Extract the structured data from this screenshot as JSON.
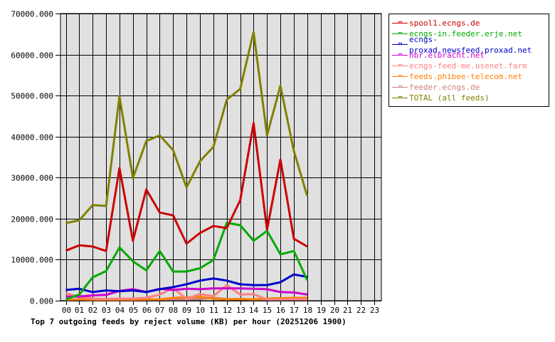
{
  "caption": "Top 7 outgoing feeds by reject volume (KB) per hour (20251206 1900)",
  "chart_data": {
    "type": "line",
    "title": "Top 7 outgoing feeds by reject volume (KB) per hour (20251206 1900)",
    "xlabel": "",
    "ylabel": "",
    "ylim": [
      0,
      70000
    ],
    "y_ticks": [
      "0.000",
      "10000.000",
      "20000.000",
      "30000.000",
      "40000.000",
      "50000.000",
      "60000.000",
      "70000.000"
    ],
    "categories": [
      "00",
      "01",
      "02",
      "03",
      "04",
      "05",
      "06",
      "07",
      "08",
      "09",
      "10",
      "11",
      "12",
      "13",
      "14",
      "15",
      "16",
      "17",
      "18",
      "19",
      "20",
      "21",
      "22",
      "23"
    ],
    "grid": true,
    "legend_position": "right",
    "series": [
      {
        "name": "spool1.ecngs.de",
        "color": "#cc0000",
        "values": [
          12200,
          13500,
          13200,
          12100,
          32300,
          14600,
          27100,
          21500,
          20800,
          13900,
          16500,
          18200,
          17700,
          24500,
          43300,
          17300,
          34400,
          15100,
          13200
        ]
      },
      {
        "name": "ecngs-in.feeder.erje.net",
        "color": "#00aa00",
        "values": [
          300,
          1500,
          5700,
          7200,
          13000,
          9600,
          7400,
          12100,
          7100,
          7100,
          7900,
          9900,
          19000,
          18400,
          14600,
          17000,
          11300,
          12100,
          5000
        ]
      },
      {
        "name": "ecngs-proxad.newsfeed.proxad.net",
        "color": "#0000cc",
        "values": [
          2600,
          2900,
          2100,
          2500,
          2300,
          2500,
          2100,
          2800,
          3300,
          4000,
          4900,
          5400,
          4900,
          4000,
          3800,
          3800,
          4500,
          6400,
          5800
        ]
      },
      {
        "name": "nbr.elbracht.net",
        "color": "#cc00cc",
        "values": [
          1000,
          1000,
          1300,
          1400,
          2400,
          2800,
          2100,
          2900,
          2600,
          2900,
          2800,
          3000,
          3000,
          3000,
          2900,
          2800,
          2100,
          2000,
          1500
        ]
      },
      {
        "name": "ecngs-feed-me.usenet.farm",
        "color": "#ff8080",
        "values": [
          1800,
          900,
          500,
          400,
          500,
          500,
          700,
          1500,
          3100,
          400,
          1600,
          1100,
          3800,
          1500,
          1600,
          300,
          300,
          400,
          300
        ]
      },
      {
        "name": "feeds.phibee-telecom.net",
        "color": "#ff7f00",
        "values": [
          200,
          300,
          200,
          200,
          200,
          200,
          300,
          300,
          700,
          800,
          900,
          500,
          300,
          400,
          300,
          500,
          600,
          700,
          700
        ]
      },
      {
        "name": "feeder.ecngs.de",
        "color": "#cc8080",
        "values": [
          800,
          1300,
          500,
          300,
          300,
          300,
          300,
          300,
          300,
          300,
          400,
          700,
          400,
          400,
          300,
          300,
          300,
          300,
          300
        ]
      },
      {
        "name": "TOTAL (all feeds)",
        "color": "#808000",
        "values": [
          18900,
          19600,
          23300,
          23100,
          49800,
          29900,
          38900,
          40300,
          36700,
          27600,
          34000,
          37500,
          49000,
          51600,
          65500,
          40300,
          52400,
          36500,
          25500
        ]
      }
    ]
  }
}
